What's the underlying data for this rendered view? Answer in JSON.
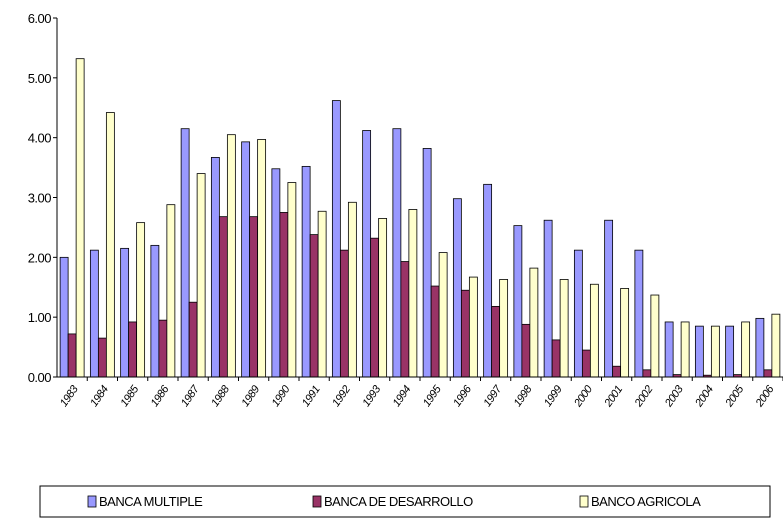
{
  "chart_data": {
    "type": "bar",
    "categories": [
      "1983",
      "1984",
      "1985",
      "1986",
      "1987",
      "1988",
      "1989",
      "1990",
      "1991",
      "1992",
      "1993",
      "1994",
      "1995",
      "1996",
      "1997",
      "1998",
      "1999",
      "2000",
      "2001",
      "2002",
      "2003",
      "2004",
      "2005",
      "2006"
    ],
    "series": [
      {
        "name": "BANCA MULTIPLE",
        "color": "#9999ff",
        "values": [
          2.0,
          2.12,
          2.15,
          2.2,
          4.15,
          3.67,
          3.93,
          3.48,
          3.52,
          4.62,
          4.12,
          4.15,
          3.82,
          2.98,
          3.22,
          2.53,
          2.62,
          2.12,
          2.62,
          2.12,
          0.92,
          0.85,
          0.85,
          0.98
        ]
      },
      {
        "name": "BANCA DE DESARROLLO",
        "color": "#993366",
        "values": [
          0.72,
          0.65,
          0.92,
          0.95,
          1.25,
          2.68,
          2.68,
          2.75,
          2.38,
          2.12,
          2.32,
          1.93,
          1.52,
          1.45,
          1.18,
          0.88,
          0.62,
          0.45,
          0.18,
          0.12,
          0.04,
          0.03,
          0.04,
          0.12
        ]
      },
      {
        "name": "BANCO AGRICOLA",
        "color": "#ffffcc",
        "values": [
          5.32,
          4.42,
          2.58,
          2.88,
          3.4,
          4.05,
          3.97,
          3.25,
          2.77,
          2.92,
          2.65,
          2.8,
          2.08,
          1.67,
          1.63,
          1.82,
          1.63,
          1.55,
          1.48,
          1.37,
          0.92,
          0.85,
          0.92,
          1.05
        ]
      }
    ],
    "ylim": [
      0,
      6
    ],
    "yticks": [
      {
        "value": 0,
        "label": "0.00"
      },
      {
        "value": 1,
        "label": "1.00"
      },
      {
        "value": 2,
        "label": "2.00"
      },
      {
        "value": 3,
        "label": "3.00"
      },
      {
        "value": 4,
        "label": "4.00"
      },
      {
        "value": 5,
        "label": "5.00"
      },
      {
        "value": 6,
        "label": "6.00"
      }
    ],
    "legend": "bottom"
  }
}
